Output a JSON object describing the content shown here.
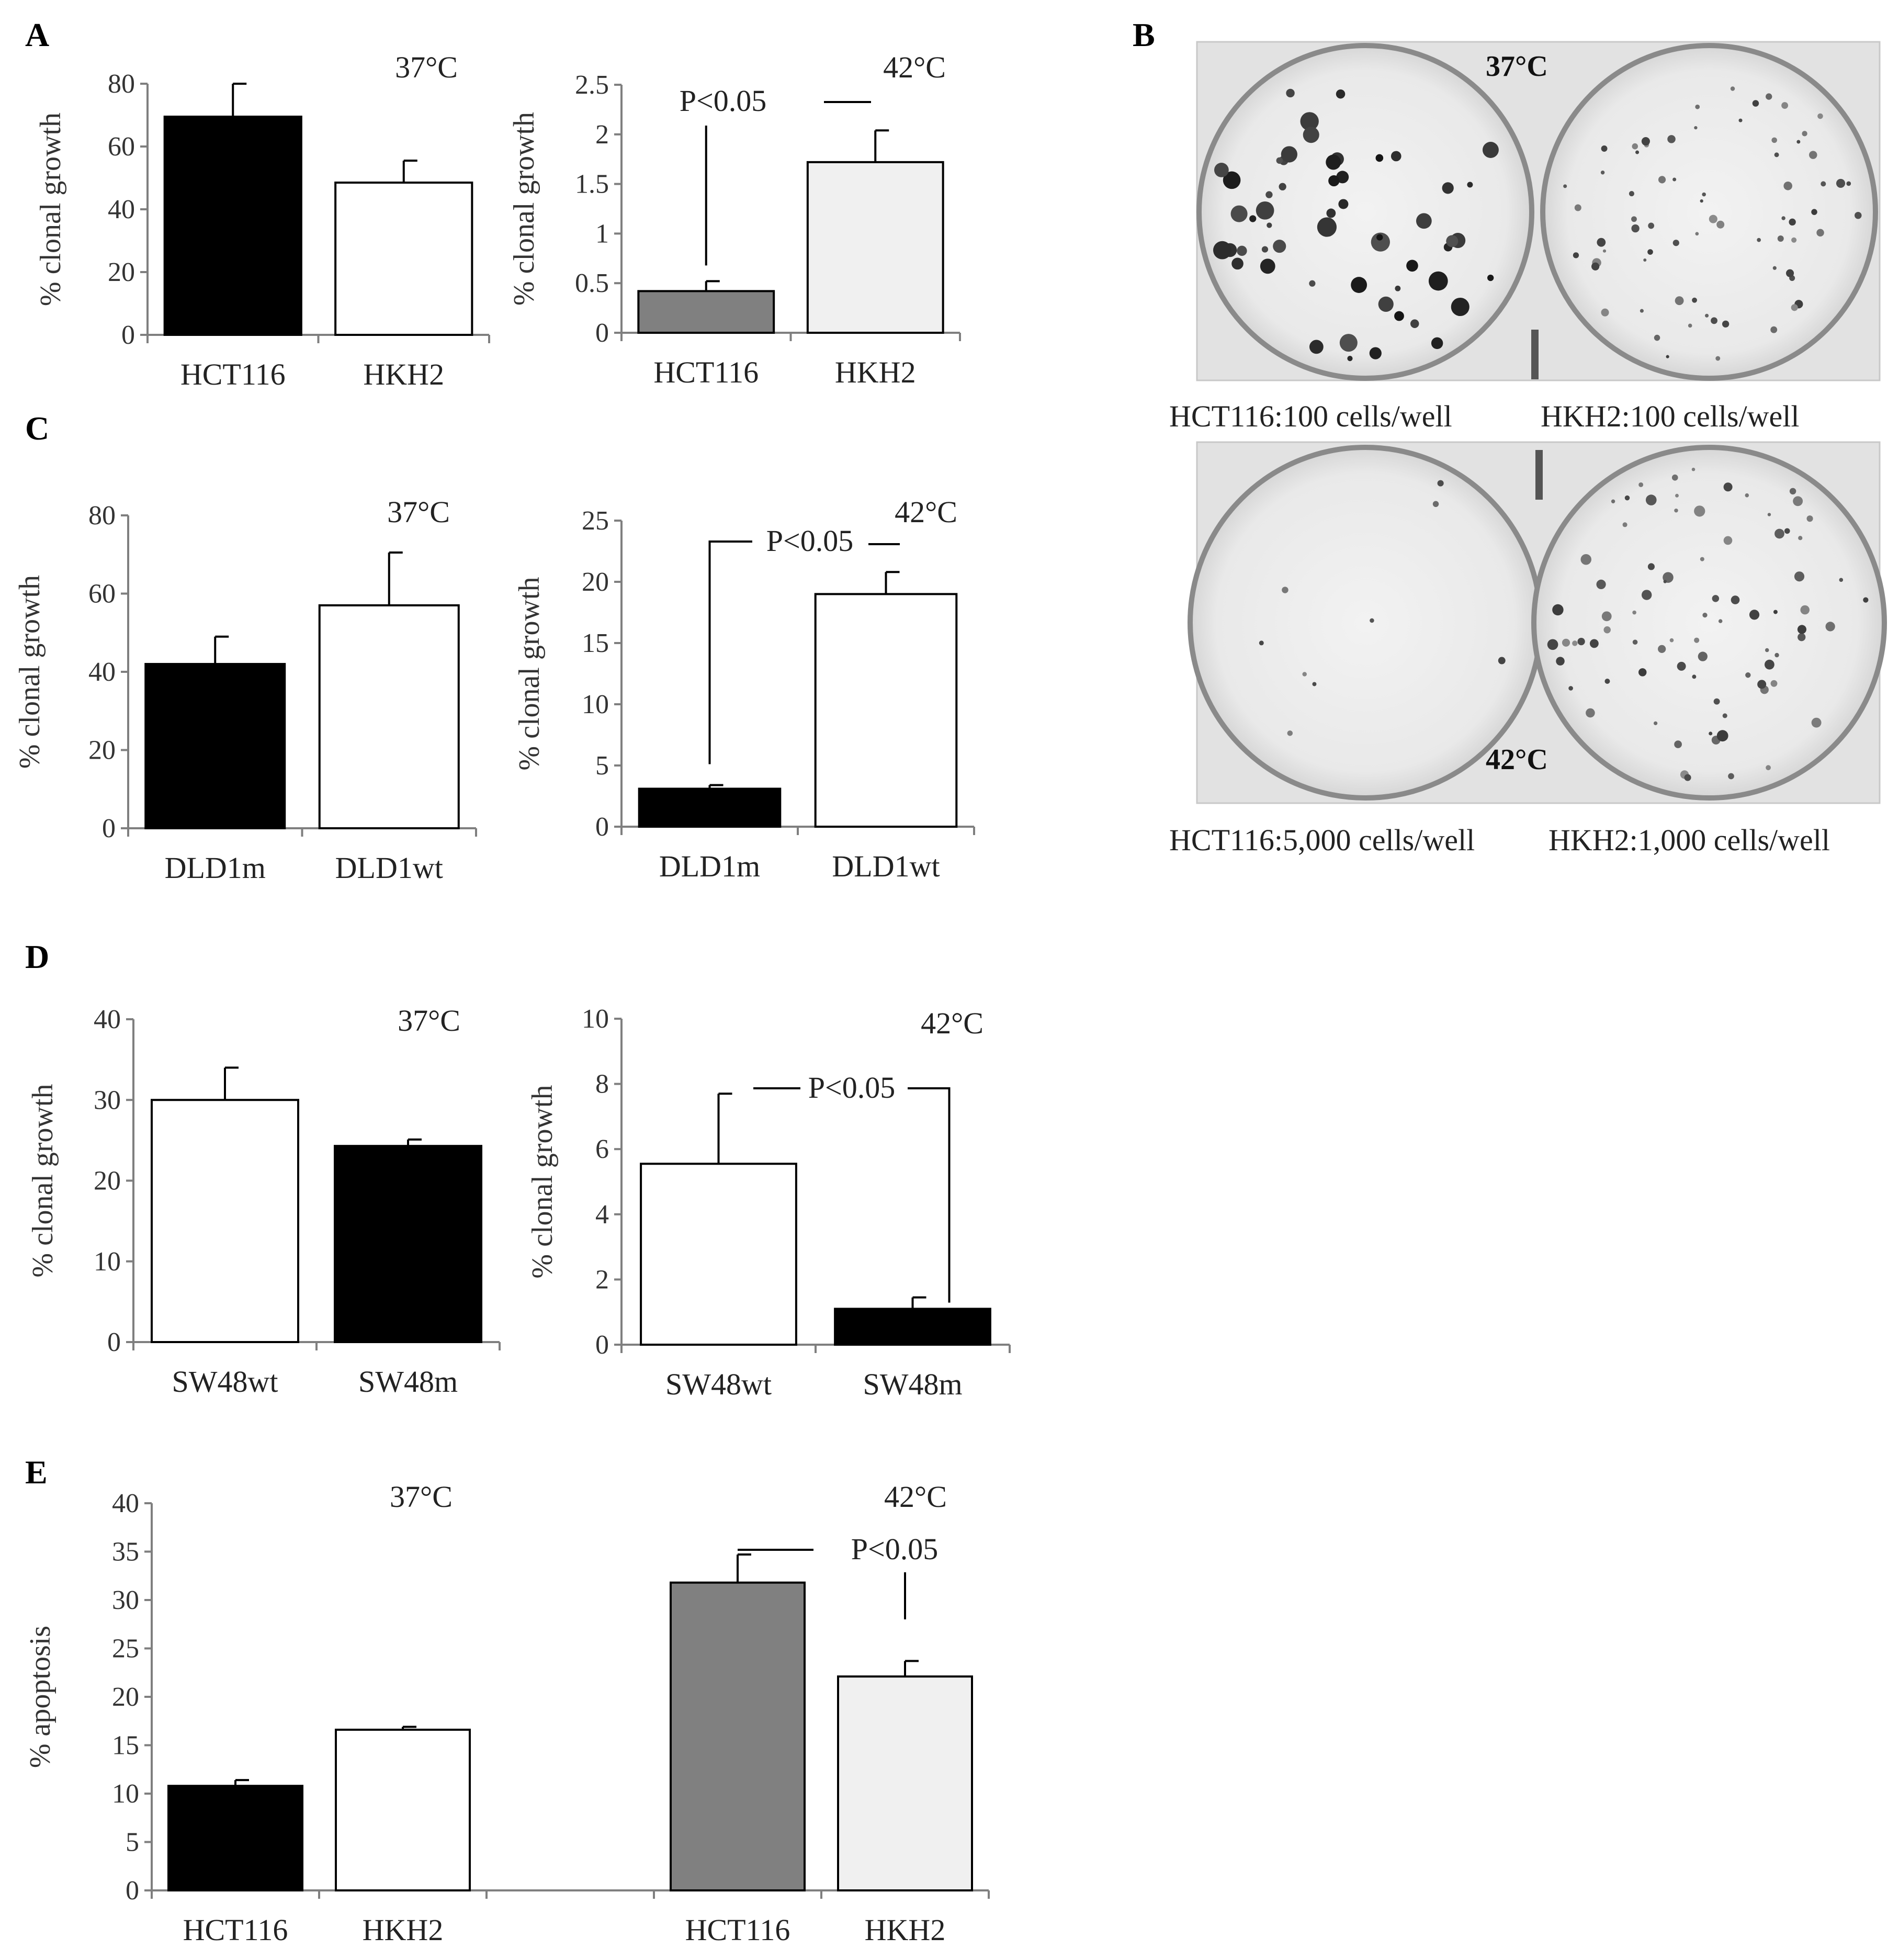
{
  "panels": {
    "a": "A",
    "b": "B",
    "c": "C",
    "d": "D",
    "e": "E"
  },
  "colors": {
    "black": "#000000",
    "white": "#ffffff",
    "dark_gray": "#808080",
    "light_gray": "#f0f0f0",
    "axis": "#7f7f7f"
  },
  "photo": {
    "top_label": "37°C",
    "bottom_label": "42°C",
    "captions": [
      "HCT116:100 cells/well",
      "HKH2:100 cells/well",
      "HCT116:5,000 cells/well",
      "HKH2:1,000 cells/well"
    ]
  },
  "chart_data": [
    {
      "id": "A37",
      "type": "bar",
      "panel": "A",
      "temp_label": "37°C",
      "ylabel": "% clonal growth",
      "ylim": [
        0,
        80
      ],
      "yticks": [
        "0",
        "20",
        "40",
        "60",
        "80"
      ],
      "categories": [
        "HCT116",
        "HKH2"
      ],
      "values": [
        69.5,
        48.5
      ],
      "errors": [
        10.5,
        7
      ],
      "colors": [
        "#000000",
        "#ffffff"
      ],
      "significance": ""
    },
    {
      "id": "A42",
      "type": "bar",
      "panel": "A",
      "temp_label": "42°C",
      "ylabel": "% clonal growth",
      "ylim": [
        0,
        2.5
      ],
      "yticks": [
        "0",
        "0.5",
        "1",
        "1.5",
        "2",
        "2.5"
      ],
      "categories": [
        "HCT116",
        "HKH2"
      ],
      "values": [
        0.42,
        1.72
      ],
      "errors": [
        0.1,
        0.32
      ],
      "colors": [
        "#808080",
        "#f0f0f0"
      ],
      "significance": "P<0.05"
    },
    {
      "id": "C37",
      "type": "bar",
      "panel": "C",
      "temp_label": "37°C",
      "ylabel": "% clonal growth",
      "ylim": [
        0,
        80
      ],
      "yticks": [
        "0",
        "20",
        "40",
        "60",
        "80"
      ],
      "categories": [
        "DLD1m",
        "DLD1wt"
      ],
      "values": [
        42,
        57
      ],
      "errors": [
        7,
        13.5
      ],
      "colors": [
        "#000000",
        "#ffffff"
      ],
      "significance": ""
    },
    {
      "id": "C42",
      "type": "bar",
      "panel": "C",
      "temp_label": "42°C",
      "ylabel": "% clonal growth",
      "ylim": [
        0,
        25
      ],
      "yticks": [
        "0",
        "5",
        "10",
        "15",
        "20",
        "25"
      ],
      "categories": [
        "DLD1m",
        "DLD1wt"
      ],
      "values": [
        3.1,
        19
      ],
      "errors": [
        0.3,
        1.8
      ],
      "colors": [
        "#000000",
        "#ffffff"
      ],
      "significance": "P<0.05"
    },
    {
      "id": "D37",
      "type": "bar",
      "panel": "D",
      "temp_label": "37°C",
      "ylabel": "% clonal growth",
      "ylim": [
        0,
        40
      ],
      "yticks": [
        "0",
        "10",
        "20",
        "30",
        "40"
      ],
      "categories": [
        "SW48wt",
        "SW48m"
      ],
      "values": [
        30,
        24.3
      ],
      "errors": [
        4,
        0.8
      ],
      "colors": [
        "#ffffff",
        "#000000"
      ],
      "significance": ""
    },
    {
      "id": "D42",
      "type": "bar",
      "panel": "D",
      "temp_label": "42°C",
      "ylabel": "% clonal growth",
      "ylim": [
        0,
        10
      ],
      "yticks": [
        "0",
        "2",
        "4",
        "6",
        "8",
        "10"
      ],
      "categories": [
        "SW48wt",
        "SW48m"
      ],
      "values": [
        5.55,
        1.1
      ],
      "errors": [
        2.15,
        0.35
      ],
      "colors": [
        "#ffffff",
        "#000000"
      ],
      "significance": "P<0.05"
    },
    {
      "id": "E",
      "type": "bar",
      "panel": "E",
      "temp_labels": [
        "37°C",
        "42°C"
      ],
      "ylabel": "% apoptosis",
      "ylim": [
        0,
        40
      ],
      "yticks": [
        "0",
        "5",
        "10",
        "15",
        "20",
        "25",
        "30",
        "35",
        "40"
      ],
      "categories": [
        "HCT116",
        "HKH2",
        "",
        "HCT116",
        "HKH2"
      ],
      "values": [
        10.8,
        16.6,
        null,
        31.8,
        22.1
      ],
      "errors": [
        0.6,
        0.3,
        null,
        2.9,
        1.6
      ],
      "colors": [
        "#000000",
        "#ffffff",
        null,
        "#808080",
        "#f0f0f0"
      ],
      "significance": "P<0.05"
    }
  ]
}
